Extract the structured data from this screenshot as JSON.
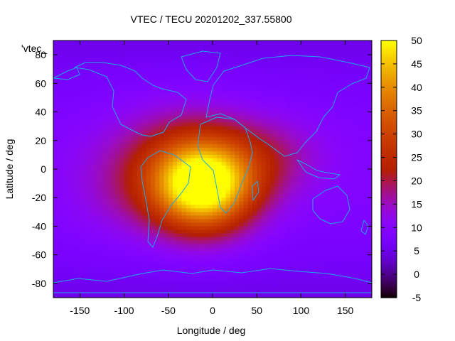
{
  "chart_data": {
    "type": "heatmap",
    "title": "VTEC / TECU 20201202_337.55800",
    "xlabel": "Longitude / deg",
    "ylabel": "Latitude / deg",
    "xlim": [
      -180,
      180
    ],
    "ylim": [
      -90,
      90
    ],
    "xticks": [
      -150,
      -100,
      -50,
      0,
      50,
      100,
      150
    ],
    "yticks": [
      -80,
      -60,
      -40,
      -20,
      0,
      20,
      40,
      60,
      80
    ],
    "colorbar": {
      "min": -5,
      "max": 50,
      "ticks": [
        -5,
        0,
        5,
        10,
        15,
        20,
        25,
        30,
        35,
        40,
        45,
        50
      ],
      "palette": "gnuplot-rgbformulae-7-5-15"
    },
    "legend_label": "'vtec_",
    "field": {
      "background_tecu": 9,
      "peaks": [
        {
          "lon": -10,
          "lat": -12,
          "value": 42,
          "lon_sigma": 40,
          "lat_sigma": 22
        },
        {
          "lon": -40,
          "lat": 5,
          "value": 10,
          "lon_sigma": 55,
          "lat_sigma": 28
        },
        {
          "lon": 60,
          "lat": 8,
          "value": 8,
          "lon_sigma": 45,
          "lat_sigma": 20
        },
        {
          "lon": -100,
          "lat": -15,
          "value": 4,
          "lon_sigma": 45,
          "lat_sigma": 25
        }
      ]
    }
  }
}
